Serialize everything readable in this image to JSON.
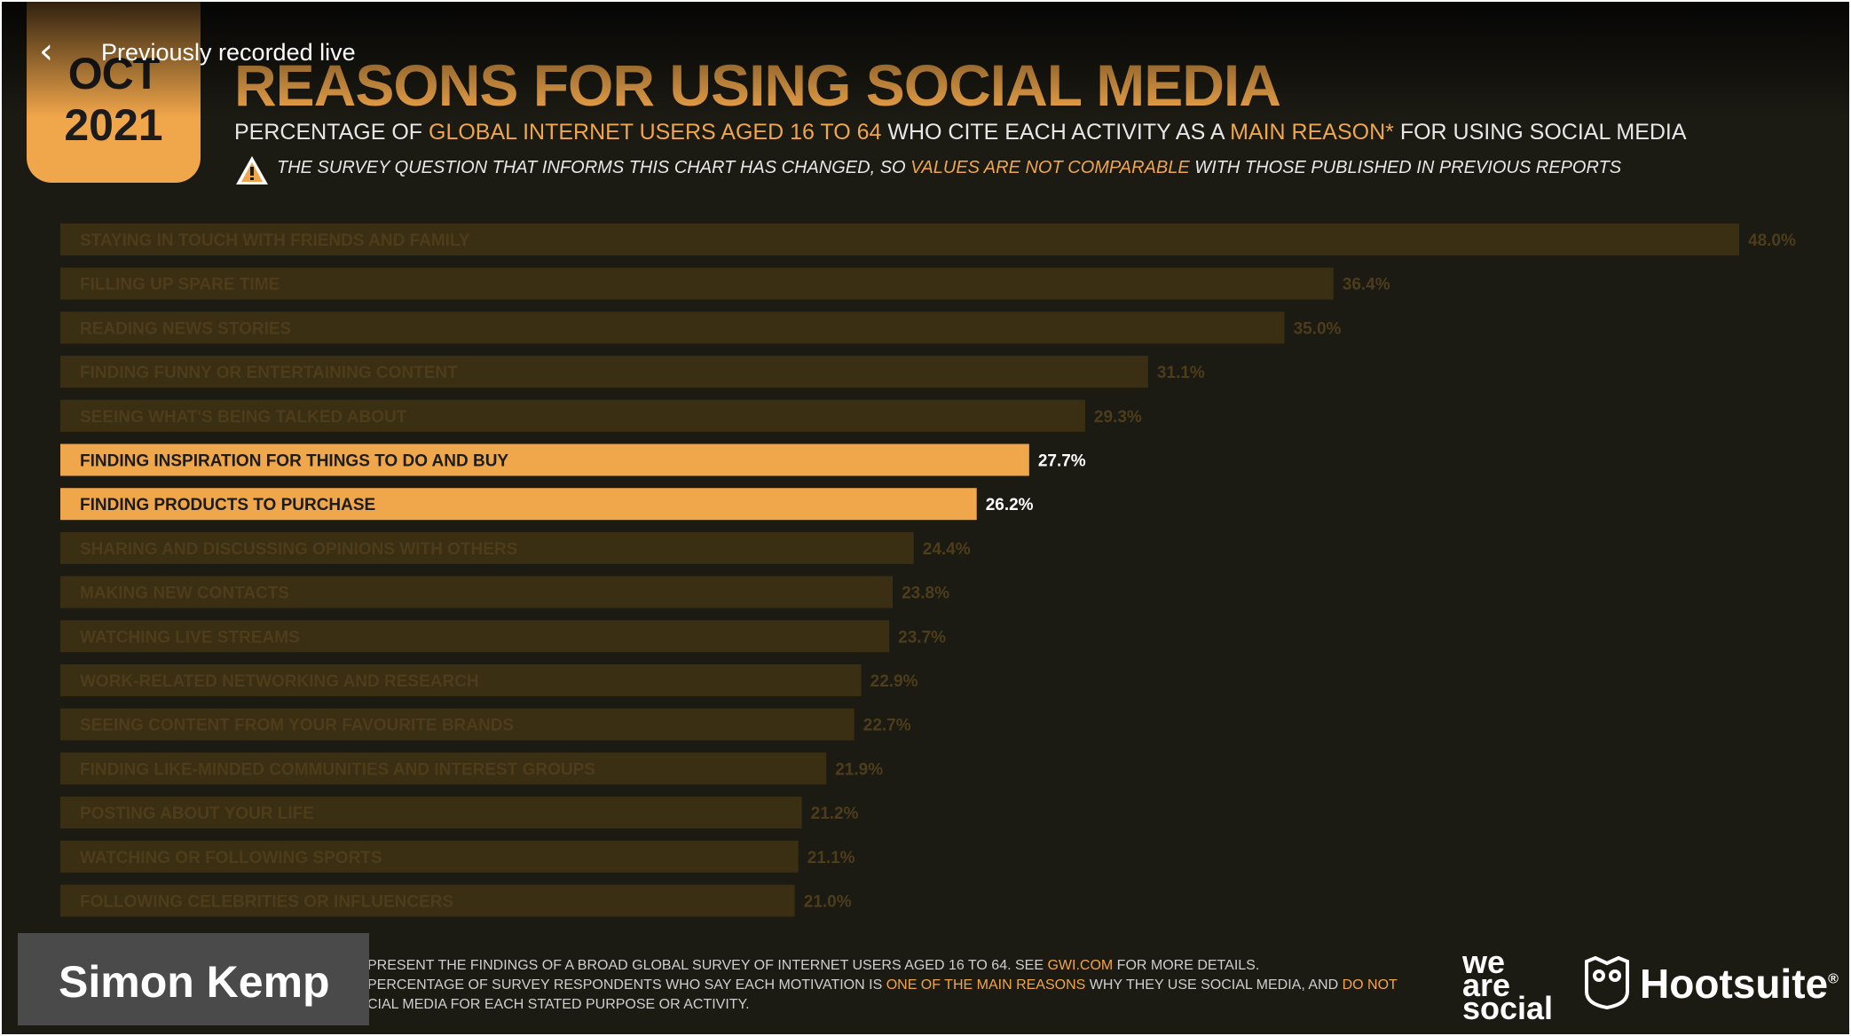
{
  "player": {
    "back_icon": "chevron-left-icon",
    "live_label": "Previously recorded live",
    "presenter_name": "Simon Kemp"
  },
  "slide": {
    "date_month": "OCT",
    "date_year": "2021",
    "title": "REASONS FOR USING SOCIAL MEDIA",
    "subtitle": {
      "part1": "PERCENTAGE OF ",
      "part2": "GLOBAL INTERNET USERS AGED 16 TO 64",
      "part3": " WHO CITE EACH ACTIVITY AS A ",
      "part4": "MAIN REASON*",
      "part5": " FOR USING SOCIAL MEDIA"
    },
    "warning": {
      "icon": "warning-icon",
      "part1": "THE SURVEY QUESTION THAT INFORMS THIS CHART HAS CHANGED, SO ",
      "part2": "VALUES ARE NOT COMPARABLE",
      "part3": " WITH THOSE PUBLISHED IN PREVIOUS REPORTS"
    },
    "footnote": {
      "line1a": "PRESENT THE FINDINGS OF A BROAD GLOBAL SURVEY OF INTERNET USERS AGED 16 TO 64. SEE ",
      "line1b": "GWI.COM",
      "line1c": " FOR MORE DETAILS.",
      "line2a": " PERCENTAGE OF SURVEY RESPONDENTS WHO SAY EACH MOTIVATION IS ",
      "line2b": "ONE OF THE MAIN REASONS",
      "line2c": " WHY THEY USE SOCIAL MEDIA, AND ",
      "line2d": "DO NOT",
      "line3": "CIAL MEDIA FOR EACH STATED PURPOSE OR ACTIVITY."
    },
    "logos": {
      "was_line1": "we",
      "was_line2": "are",
      "was_line3": "social",
      "hootsuite": "Hootsuite",
      "hootsuite_reg": "®",
      "hootsuite_icon": "owl-icon"
    },
    "colors": {
      "accent": "#f0a64a",
      "dimmed_bar": "#3a2e13",
      "dimmed_text": "#4d3d1a",
      "highlight_text": "#1c1c1c",
      "background": "#1b1a13"
    }
  },
  "chart_data": {
    "type": "bar",
    "orientation": "horizontal",
    "categories": [
      "STAYING IN TOUCH WITH FRIENDS AND FAMILY",
      "FILLING UP SPARE TIME",
      "READING NEWS STORIES",
      "FINDING FUNNY OR ENTERTAINING CONTENT",
      "SEEING WHAT'S BEING TALKED ABOUT",
      "FINDING INSPIRATION FOR THINGS TO DO AND BUY",
      "FINDING PRODUCTS TO PURCHASE",
      "SHARING AND DISCUSSING OPINIONS WITH OTHERS",
      "MAKING NEW CONTACTS",
      "WATCHING LIVE STREAMS",
      "WORK-RELATED NETWORKING AND RESEARCH",
      "SEEING CONTENT FROM YOUR FAVOURITE BRANDS",
      "FINDING LIKE-MINDED COMMUNITIES AND INTEREST GROUPS",
      "POSTING ABOUT YOUR LIFE",
      "WATCHING OR FOLLOWING SPORTS",
      "FOLLOWING CELEBRITIES OR INFLUENCERS"
    ],
    "values": [
      48.0,
      36.4,
      35.0,
      31.1,
      29.3,
      27.7,
      26.2,
      24.4,
      23.8,
      23.7,
      22.9,
      22.7,
      21.9,
      21.2,
      21.1,
      21.0
    ],
    "value_labels": [
      "48.0%",
      "36.4%",
      "35.0%",
      "31.1%",
      "29.3%",
      "27.7%",
      "26.2%",
      "24.4%",
      "23.8%",
      "23.7%",
      "22.9%",
      "22.7%",
      "21.9%",
      "21.2%",
      "21.1%",
      "21.0%"
    ],
    "highlighted": [
      false,
      false,
      false,
      false,
      false,
      true,
      true,
      false,
      false,
      false,
      false,
      false,
      false,
      false,
      false,
      false
    ],
    "xlim": [
      0,
      48.0
    ],
    "grid": false,
    "legend": "none"
  }
}
